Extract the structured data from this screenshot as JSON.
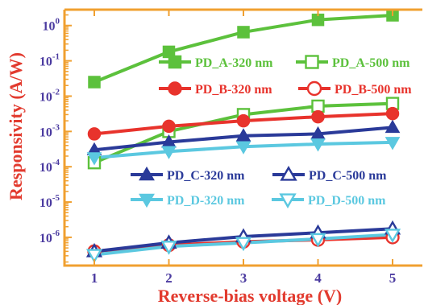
{
  "chart_data": {
    "type": "line",
    "xlabel": "Reverse-bias voltage (V)",
    "ylabel": "Responsivity (A/W)",
    "y_scale": "log",
    "xlim": [
      0.6,
      5.4
    ],
    "ylim_log10": [
      -6.8,
      0.45
    ],
    "x": [
      1,
      2,
      3,
      4,
      5
    ],
    "x_tick_labels": [
      "1",
      "2",
      "3",
      "4",
      "5"
    ],
    "y_ticks": [
      {
        "exp": 0,
        "base": "10",
        "sup": "0"
      },
      {
        "exp": -1,
        "base": "10",
        "sup": "-1"
      },
      {
        "exp": -2,
        "base": "10",
        "sup": "-2"
      },
      {
        "exp": -3,
        "base": "10",
        "sup": "-3"
      },
      {
        "exp": -4,
        "base": "10",
        "sup": "-4"
      },
      {
        "exp": -5,
        "base": "10",
        "sup": "-5"
      },
      {
        "exp": -6,
        "base": "10",
        "sup": "-6"
      }
    ],
    "colors": {
      "axis_box": "#f0a030",
      "tick_labels": "#4b3ba0",
      "axis_titles": "#e23a2e"
    },
    "series": [
      {
        "name": "PD_A-320 nm",
        "color": "#5cc13c",
        "marker": "square",
        "filled": true,
        "values": [
          0.025,
          0.18,
          0.65,
          1.45,
          1.95
        ]
      },
      {
        "name": "PD_A-500 nm",
        "color": "#5cc13c",
        "marker": "square",
        "filled": false,
        "values": [
          0.00013,
          0.001,
          0.003,
          0.0052,
          0.0062
        ]
      },
      {
        "name": "PD_B-320 nm",
        "color": "#e8332c",
        "marker": "circle",
        "filled": true,
        "values": [
          0.00085,
          0.0014,
          0.002,
          0.0026,
          0.0032
        ]
      },
      {
        "name": "PD_B-500 nm",
        "color": "#e8332c",
        "marker": "circle",
        "filled": false,
        "values": [
          4e-07,
          6e-07,
          7.5e-07,
          8.5e-07,
          1e-06
        ]
      },
      {
        "name": "PD_C-320 nm",
        "color": "#2a3a99",
        "marker": "triangle-up",
        "filled": true,
        "values": [
          0.0003,
          0.0005,
          0.00075,
          0.00085,
          0.0013
        ]
      },
      {
        "name": "PD_C-500 nm",
        "color": "#2a3a99",
        "marker": "triangle-up",
        "filled": false,
        "values": [
          4e-07,
          7e-07,
          1.05e-06,
          1.35e-06,
          1.75e-06
        ]
      },
      {
        "name": "PD_D-320 nm",
        "color": "#5bc8e0",
        "marker": "triangle-down",
        "filled": true,
        "values": [
          0.00018,
          0.00027,
          0.00037,
          0.00044,
          0.00049
        ]
      },
      {
        "name": "PD_D-500 nm",
        "color": "#5bc8e0",
        "marker": "triangle-down",
        "filled": false,
        "values": [
          3.2e-07,
          5.5e-07,
          7e-07,
          9e-07,
          1.2e-06
        ]
      }
    ],
    "legend_rows": [
      {
        "row": 1,
        "items": [
          0,
          1
        ]
      },
      {
        "row": 2,
        "items": [
          2,
          3
        ]
      },
      {
        "row": 3,
        "items": [
          4,
          5
        ]
      },
      {
        "row": 4,
        "items": [
          6,
          7
        ]
      }
    ]
  }
}
